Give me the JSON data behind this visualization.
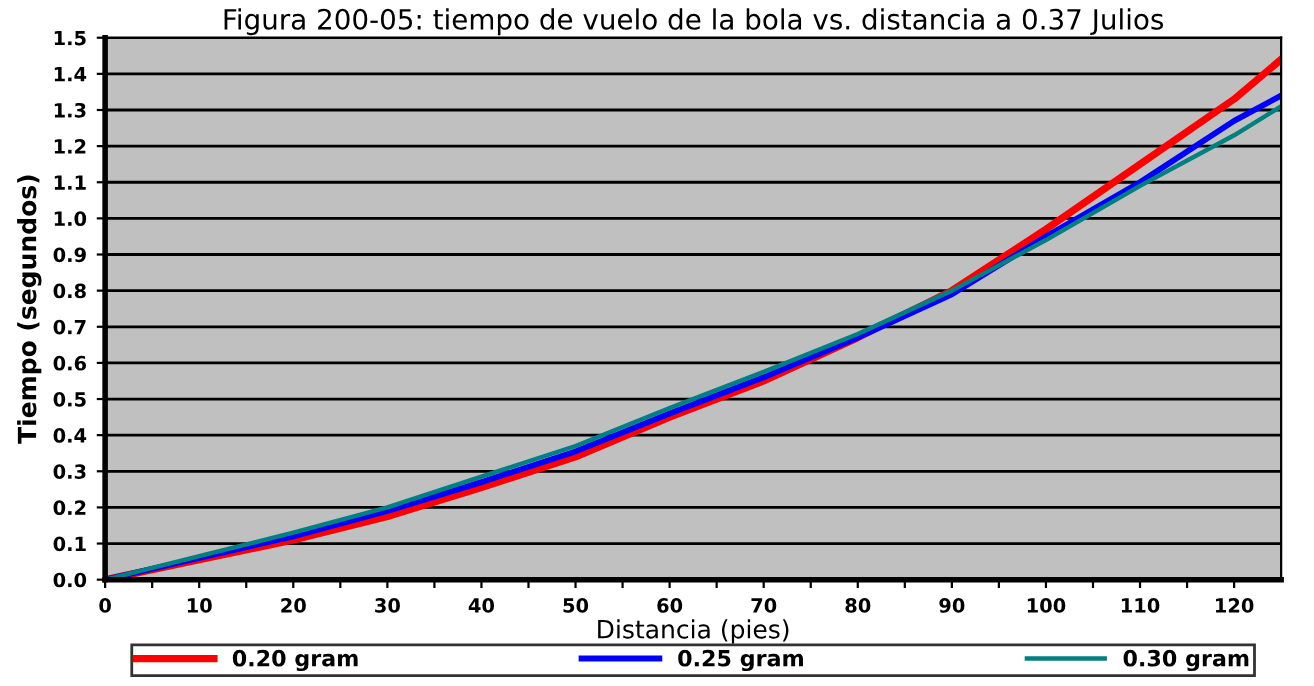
{
  "chart_data": {
    "type": "line",
    "title": "Figura 200-05: tiempo de vuelo de la bola vs. distancia a 0.37 Julios",
    "xlabel": "Distancia (pies)",
    "ylabel": "Tiempo (segundos)",
    "x": [
      0,
      10,
      20,
      30,
      40,
      50,
      60,
      70,
      80,
      90,
      100,
      110,
      120,
      125
    ],
    "series": [
      {
        "name": "0.20 gram",
        "color": "#ff0000",
        "values": [
          0,
          0.055,
          0.11,
          0.175,
          0.255,
          0.34,
          0.45,
          0.55,
          0.67,
          0.8,
          0.97,
          1.15,
          1.33,
          1.44
        ]
      },
      {
        "name": "0.25 gram",
        "color": "#0000ff",
        "values": [
          0,
          0.06,
          0.12,
          0.19,
          0.27,
          0.355,
          0.46,
          0.56,
          0.67,
          0.79,
          0.95,
          1.1,
          1.27,
          1.34
        ]
      },
      {
        "name": "0.30 gram",
        "color": "#008080",
        "values": [
          0,
          0.065,
          0.13,
          0.2,
          0.285,
          0.37,
          0.475,
          0.575,
          0.68,
          0.8,
          0.94,
          1.09,
          1.23,
          1.31
        ]
      }
    ],
    "xlim": [
      0,
      125
    ],
    "ylim": [
      0,
      1.5
    ],
    "xticks": [
      0,
      {
        "value": 5,
        "label": null
      },
      10,
      {
        "value": 15,
        "label": null
      },
      20,
      {
        "value": 25,
        "label": null
      },
      30,
      {
        "value": 35,
        "label": null
      },
      40,
      {
        "value": 45,
        "label": null
      },
      50,
      {
        "value": 55,
        "label": null
      },
      60,
      {
        "value": 65,
        "label": null
      },
      70,
      {
        "value": 75,
        "label": null
      },
      80,
      {
        "value": 85,
        "label": null
      },
      90,
      {
        "value": 95,
        "label": null
      },
      100,
      {
        "value": 105,
        "label": null
      },
      110,
      {
        "value": 115,
        "label": null
      },
      120
    ],
    "yticks": [
      {
        "value": 0,
        "label": "0.0"
      },
      0.1,
      0.2,
      0.3,
      0.4,
      0.5,
      0.6,
      0.7,
      0.8,
      0.9,
      {
        "value": 1,
        "label": "1.0"
      },
      1.1,
      1.2,
      1.3,
      1.4,
      1.5
    ],
    "grid": "y",
    "legend": "bottom",
    "marker": "none",
    "line_style": "solid"
  }
}
